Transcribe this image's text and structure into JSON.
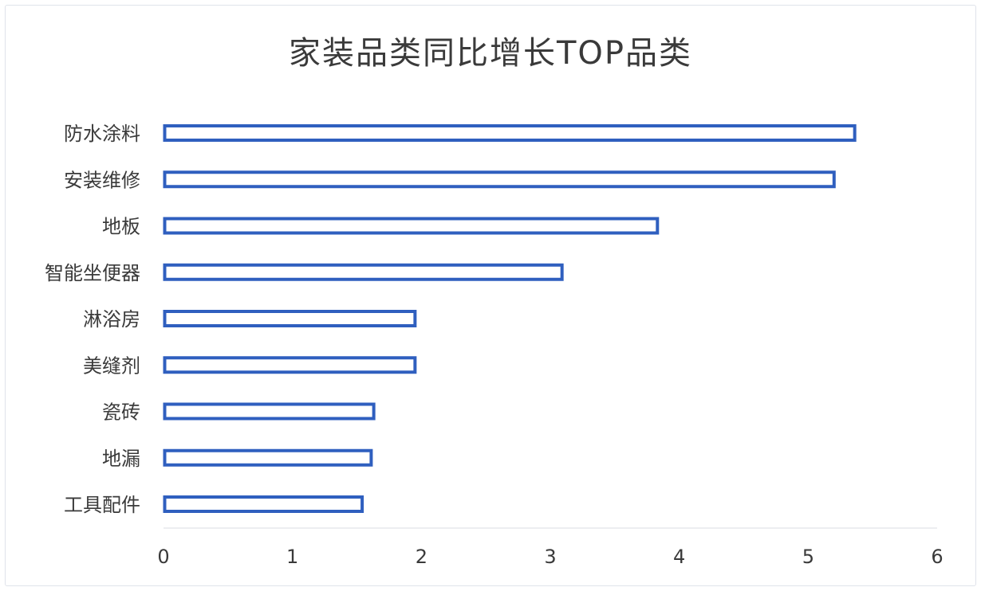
{
  "chart_data": {
    "type": "bar",
    "orientation": "horizontal",
    "title": "家装品类同比增长TOP品类",
    "categories": [
      "防水涂料",
      "安装维修",
      "地板",
      "智能坐便器",
      "淋浴房",
      "美缝剂",
      "瓷砖",
      "地漏",
      "工具配件"
    ],
    "values": [
      5.37,
      5.21,
      3.84,
      3.1,
      1.96,
      1.96,
      1.64,
      1.62,
      1.55
    ],
    "xlim": [
      0,
      6
    ],
    "xticks": [
      "0",
      "1",
      "2",
      "3",
      "4",
      "5",
      "6"
    ],
    "xlabel": "",
    "ylabel": "",
    "grid": false,
    "colors": {
      "bar_stroke": "#2f5fbf",
      "bar_fill": "#ffffff",
      "text": "#3a3a3a",
      "axis": "#d9dde3"
    }
  }
}
